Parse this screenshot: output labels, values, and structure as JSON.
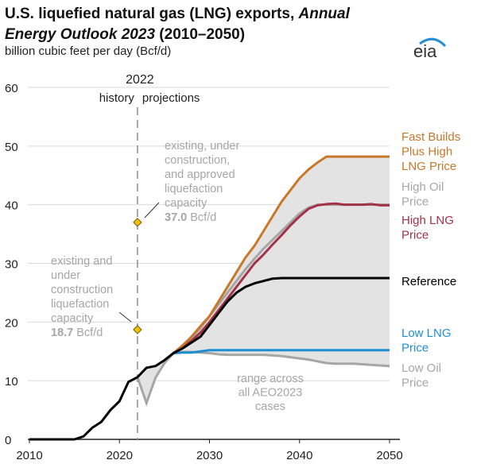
{
  "title": {
    "line1": "U.S. liquefied natural gas (LNG) exports, ",
    "line1_italic": "Annual",
    "line2_italic": "Energy Outlook 2023",
    "line2": " (2010–2050)"
  },
  "subtitle": "billion cubic feet per day (Bcf/d)",
  "logo": "eia",
  "chart_data": {
    "type": "line",
    "ylabel": "billion cubic feet per day (Bcf/d)",
    "xlim": [
      2010,
      2050
    ],
    "ylim": [
      0,
      60
    ],
    "x_ticks": [
      "2010",
      "2020",
      "2030",
      "2040",
      "2050"
    ],
    "y_ticks": [
      "0",
      "10",
      "20",
      "30",
      "40",
      "50",
      "60"
    ],
    "grid": "horizontal",
    "divider": {
      "year": "2022",
      "left_label": "history",
      "right_label": "projections"
    },
    "annotations": [
      {
        "lines": [
          "existing, under",
          "construction,",
          "and approved",
          "liquefaction",
          "capacity"
        ],
        "value_bold": "37.0",
        "unit": " Bcf/d",
        "year": 2022,
        "y": 37.0
      },
      {
        "lines": [
          "existing and",
          "under",
          "construction",
          "liquefaction",
          "capacity"
        ],
        "value_bold": "18.7",
        "unit": " Bcf/d",
        "year": 2022,
        "y": 18.7
      }
    ],
    "range_label": [
      "range across",
      "all AEO2023",
      "cases"
    ],
    "range_lower_extra": {
      "x": [
        2022,
        2023,
        2024,
        2025,
        2026
      ],
      "y": [
        10.6,
        6.2,
        10.5,
        13.0,
        14.7
      ]
    },
    "series": [
      {
        "name": "Reference",
        "label_lines": [
          "Reference"
        ],
        "color": "#000000",
        "x": [
          2010,
          2011,
          2012,
          2013,
          2014,
          2015,
          2016,
          2017,
          2018,
          2019,
          2020,
          2021,
          2022,
          2023,
          2024,
          2025,
          2026,
          2027,
          2028,
          2029,
          2030,
          2031,
          2032,
          2033,
          2034,
          2035,
          2036,
          2037,
          2038,
          2039,
          2040,
          2041,
          2042,
          2043,
          2044,
          2045,
          2046,
          2047,
          2048,
          2049,
          2050
        ],
        "y": [
          0,
          0,
          0,
          0,
          0,
          0,
          0.5,
          2.0,
          3.0,
          5.0,
          6.5,
          9.8,
          10.6,
          12.2,
          12.5,
          13.5,
          14.7,
          15.5,
          16.5,
          17.5,
          19.5,
          21.5,
          23.5,
          25.0,
          26.0,
          26.6,
          27.0,
          27.4,
          27.5,
          27.5,
          27.5,
          27.5,
          27.5,
          27.5,
          27.5,
          27.5,
          27.5,
          27.5,
          27.5,
          27.5,
          27.5
        ]
      },
      {
        "name": "Fast Builds Plus High LNG Price",
        "label_lines": [
          "Fast Builds",
          "Plus High",
          "LNG Price"
        ],
        "color": "#c8782a",
        "x": [
          2026,
          2027,
          2028,
          2029,
          2030,
          2031,
          2032,
          2033,
          2034,
          2035,
          2036,
          2037,
          2038,
          2039,
          2040,
          2041,
          2042,
          2043,
          2044,
          2045,
          2046,
          2047,
          2048,
          2049,
          2050
        ],
        "y": [
          14.7,
          16.0,
          17.5,
          19.3,
          21.0,
          23.5,
          26.0,
          28.5,
          31.0,
          33.0,
          35.5,
          38.0,
          40.5,
          42.5,
          44.5,
          46.0,
          47.2,
          48.2,
          48.2,
          48.2,
          48.2,
          48.2,
          48.2,
          48.2,
          48.2
        ]
      },
      {
        "name": "High Oil Price",
        "label_lines": [
          "High Oil",
          "Price"
        ],
        "color": "#a6a6a6",
        "x": [
          2026,
          2027,
          2028,
          2029,
          2030,
          2031,
          2032,
          2033,
          2034,
          2035,
          2036,
          2037,
          2038,
          2039,
          2040,
          2041,
          2042,
          2043,
          2044,
          2045,
          2046,
          2047,
          2048,
          2049,
          2050
        ],
        "y": [
          14.7,
          16.0,
          17.2,
          19.0,
          21.0,
          23.0,
          25.0,
          27.0,
          29.0,
          30.8,
          32.5,
          34.0,
          35.5,
          37.0,
          38.5,
          39.5,
          40.0,
          40.0,
          40.0,
          40.0,
          40.0,
          40.0,
          40.0,
          40.0,
          40.0
        ]
      },
      {
        "name": "High LNG Price",
        "label_lines": [
          "High LNG",
          "Price"
        ],
        "color": "#a33247",
        "x": [
          2026,
          2027,
          2028,
          2029,
          2030,
          2031,
          2032,
          2033,
          2034,
          2035,
          2036,
          2037,
          2038,
          2039,
          2040,
          2041,
          2042,
          2043,
          2044,
          2045,
          2046,
          2047,
          2048,
          2049,
          2050
        ],
        "y": [
          14.7,
          15.8,
          16.8,
          18.2,
          20.0,
          22.0,
          24.0,
          26.0,
          28.0,
          30.0,
          31.5,
          33.2,
          34.8,
          36.5,
          38.0,
          39.3,
          39.9,
          40.1,
          40.2,
          40.0,
          40.0,
          40.0,
          40.1,
          39.9,
          39.9
        ]
      },
      {
        "name": "Low LNG Price",
        "label_lines": [
          "Low LNG",
          "Price"
        ],
        "color": "#1e8fd5",
        "x": [
          2026,
          2027,
          2028,
          2029,
          2030,
          2035,
          2040,
          2045,
          2050
        ],
        "y": [
          14.7,
          14.8,
          14.8,
          15.0,
          15.2,
          15.2,
          15.2,
          15.2,
          15.2
        ]
      },
      {
        "name": "Low Oil Price",
        "label_lines": [
          "Low Oil",
          "Price"
        ],
        "color": "#a6a6a6",
        "x": [
          2026,
          2027,
          2028,
          2029,
          2030,
          2031,
          2032,
          2033,
          2034,
          2035,
          2036,
          2037,
          2038,
          2039,
          2040,
          2041,
          2042,
          2043,
          2044,
          2045,
          2046,
          2047,
          2048,
          2049,
          2050
        ],
        "y": [
          14.7,
          14.9,
          14.9,
          14.8,
          14.7,
          14.5,
          14.4,
          14.4,
          14.4,
          14.4,
          14.4,
          14.3,
          14.2,
          14.0,
          13.8,
          13.6,
          13.3,
          13.0,
          12.9,
          12.9,
          12.9,
          12.8,
          12.7,
          12.6,
          12.5
        ]
      }
    ]
  },
  "colors": {
    "range_fill": "#e3e3e3",
    "marker": "#f2c200",
    "annotation_text": "#a6a6a6",
    "grid": "#d9d9d9"
  }
}
